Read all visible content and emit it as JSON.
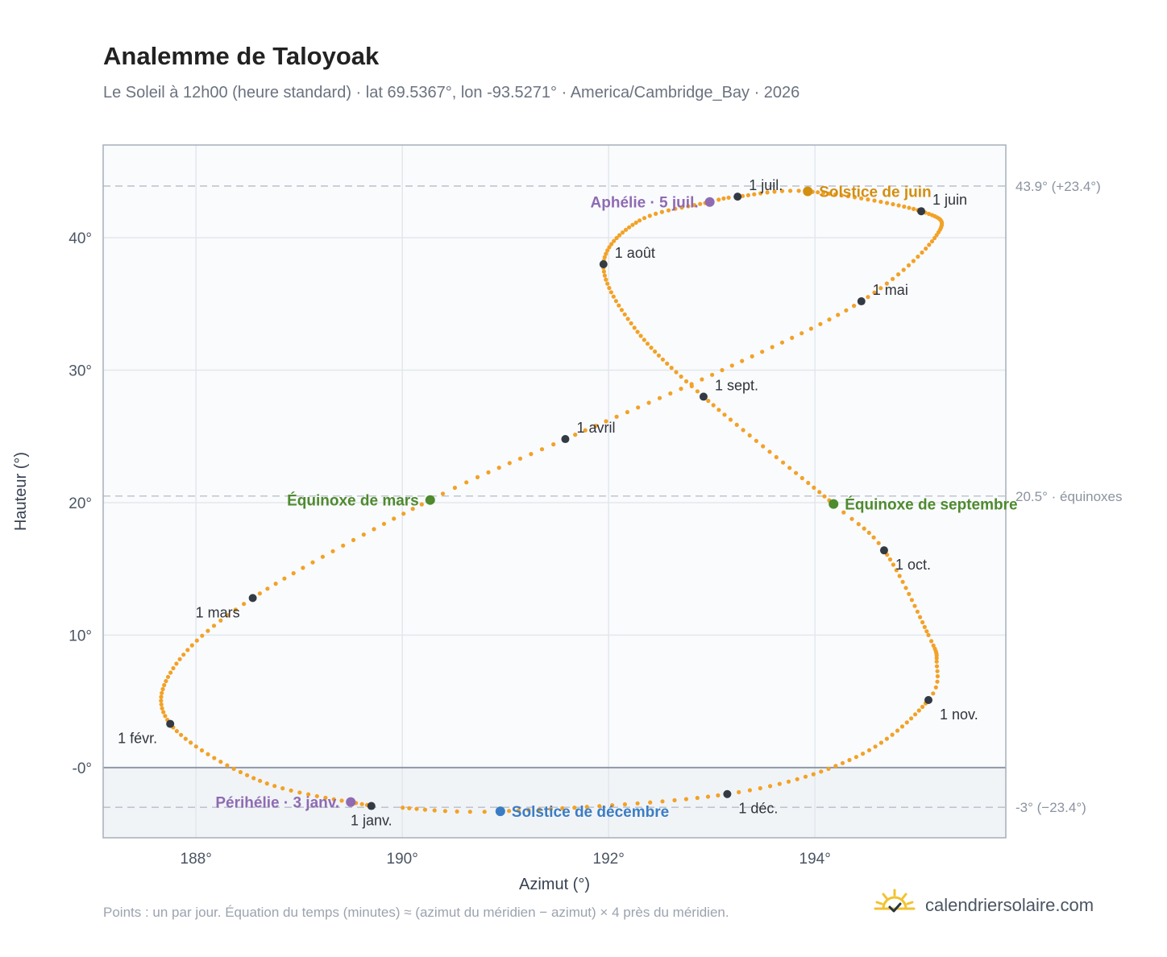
{
  "header": {
    "title": "Analemme de Taloyoak",
    "subtitle": "Le Soleil à 12h00 (heure standard) · lat 69.5367°, lon -93.5271° · America/Cambridge_Bay · 2026"
  },
  "footer": {
    "note": "Points : un par jour. Équation du temps (minutes) ≈ (azimut du méridien − azimut) × 4 près du méridien.",
    "brand": "calendriersolaire.com"
  },
  "colors": {
    "path": "#f2a227",
    "month_dot": "#333a44",
    "june": "#d38f10",
    "december": "#3b7dc4",
    "equinox": "#4e8a2e",
    "apsis": "#8e6bb3",
    "reference_line": "#bfc5cf"
  },
  "chart_data": {
    "type": "scatter",
    "xlabel": "Azimut (°)",
    "ylabel": "Hauteur (°)",
    "xlim": [
      187.1,
      195.85
    ],
    "ylim": [
      -5.3,
      47.0
    ],
    "x_ticks": [
      {
        "value": 188,
        "label": "188°"
      },
      {
        "value": 190,
        "label": "190°"
      },
      {
        "value": 192,
        "label": "192°"
      },
      {
        "value": 194,
        "label": "194°"
      }
    ],
    "y_ticks": [
      {
        "value": 0,
        "label": "-0°"
      },
      {
        "value": 10,
        "label": "10°"
      },
      {
        "value": 20,
        "label": "20°"
      },
      {
        "value": 30,
        "label": "30°"
      },
      {
        "value": 40,
        "label": "40°"
      }
    ],
    "grid": true,
    "horizon": 0,
    "reference_lines": [
      {
        "y": 43.9,
        "label": "43.9° (+23.4°)"
      },
      {
        "y": 20.5,
        "label": "20.5° · équinoxes"
      },
      {
        "y": -3.0,
        "label": "-3° (−23.4°)"
      }
    ],
    "path_keypoints": [
      {
        "day": 1,
        "az": 189.7,
        "alt": -2.9
      },
      {
        "day": 16,
        "az": 188.62,
        "alt": -1.0
      },
      {
        "day": 32,
        "az": 187.75,
        "alt": 3.3
      },
      {
        "day": 46,
        "az": 187.78,
        "alt": 7.5
      },
      {
        "day": 60,
        "az": 188.55,
        "alt": 12.8
      },
      {
        "day": 79,
        "az": 190.27,
        "alt": 20.2
      },
      {
        "day": 91,
        "az": 191.58,
        "alt": 24.8
      },
      {
        "day": 106,
        "az": 193.1,
        "alt": 30.0
      },
      {
        "day": 121,
        "az": 194.45,
        "alt": 35.2
      },
      {
        "day": 137,
        "az": 195.18,
        "alt": 40.2
      },
      {
        "day": 152,
        "az": 195.03,
        "alt": 42.0
      },
      {
        "day": 172,
        "az": 193.93,
        "alt": 43.5
      },
      {
        "day": 182,
        "az": 193.25,
        "alt": 43.1
      },
      {
        "day": 186,
        "az": 192.98,
        "alt": 42.7
      },
      {
        "day": 198,
        "az": 192.3,
        "alt": 41.3
      },
      {
        "day": 213,
        "az": 191.95,
        "alt": 38.0
      },
      {
        "day": 228,
        "az": 192.25,
        "alt": 33.2
      },
      {
        "day": 244,
        "az": 192.92,
        "alt": 28.0
      },
      {
        "day": 266,
        "az": 194.18,
        "alt": 19.9
      },
      {
        "day": 274,
        "az": 194.67,
        "alt": 16.4
      },
      {
        "day": 290,
        "az": 195.1,
        "alt": 10.0
      },
      {
        "day": 298,
        "az": 195.18,
        "alt": 8.0
      },
      {
        "day": 305,
        "az": 195.1,
        "alt": 5.1
      },
      {
        "day": 320,
        "az": 194.4,
        "alt": 0.8
      },
      {
        "day": 335,
        "az": 193.15,
        "alt": -2.0
      },
      {
        "day": 355,
        "az": 190.95,
        "alt": -3.3
      },
      {
        "day": 365,
        "az": 189.95,
        "alt": -3.0
      }
    ],
    "month_markers": [
      {
        "label": "1 janv.",
        "az": 189.7,
        "alt": -2.9,
        "anchor": "below"
      },
      {
        "label": "1 févr.",
        "az": 187.75,
        "alt": 3.3,
        "anchor": "below-left"
      },
      {
        "label": "1 mars",
        "az": 188.55,
        "alt": 12.8,
        "anchor": "below-left"
      },
      {
        "label": "1 avril",
        "az": 191.58,
        "alt": 24.8,
        "anchor": "upper-right"
      },
      {
        "label": "1 mai",
        "az": 194.45,
        "alt": 35.2,
        "anchor": "upper-right"
      },
      {
        "label": "1 juin",
        "az": 195.03,
        "alt": 42.0,
        "anchor": "upper-right"
      },
      {
        "label": "1 juil.",
        "az": 193.25,
        "alt": 43.1,
        "anchor": "upper-right"
      },
      {
        "label": "1 août",
        "az": 191.95,
        "alt": 38.0,
        "anchor": "upper-right"
      },
      {
        "label": "1 sept.",
        "az": 192.92,
        "alt": 28.0,
        "anchor": "upper-right"
      },
      {
        "label": "1 oct.",
        "az": 194.67,
        "alt": 16.4,
        "anchor": "below-right"
      },
      {
        "label": "1 nov.",
        "az": 195.1,
        "alt": 5.1,
        "anchor": "below-right"
      },
      {
        "label": "1 déc.",
        "az": 193.15,
        "alt": -2.0,
        "anchor": "below-right"
      }
    ],
    "events": [
      {
        "label": "Solstice de juin",
        "az": 193.93,
        "alt": 43.5,
        "color": "#d38f10",
        "anchor": "right"
      },
      {
        "label": "Aphélie · 5 juil.",
        "az": 192.98,
        "alt": 42.7,
        "color": "#8e6bb3",
        "anchor": "left"
      },
      {
        "label": "Équinoxe de mars",
        "az": 190.27,
        "alt": 20.2,
        "color": "#4e8a2e",
        "anchor": "left"
      },
      {
        "label": "Équinoxe de septembre",
        "az": 194.18,
        "alt": 19.9,
        "color": "#4e8a2e",
        "anchor": "right"
      },
      {
        "label": "Périhélie · 3 janv.",
        "az": 189.5,
        "alt": -2.6,
        "color": "#8e6bb3",
        "anchor": "left"
      },
      {
        "label": "Solstice de décembre",
        "az": 190.95,
        "alt": -3.3,
        "color": "#3b7dc4",
        "anchor": "right"
      }
    ]
  }
}
